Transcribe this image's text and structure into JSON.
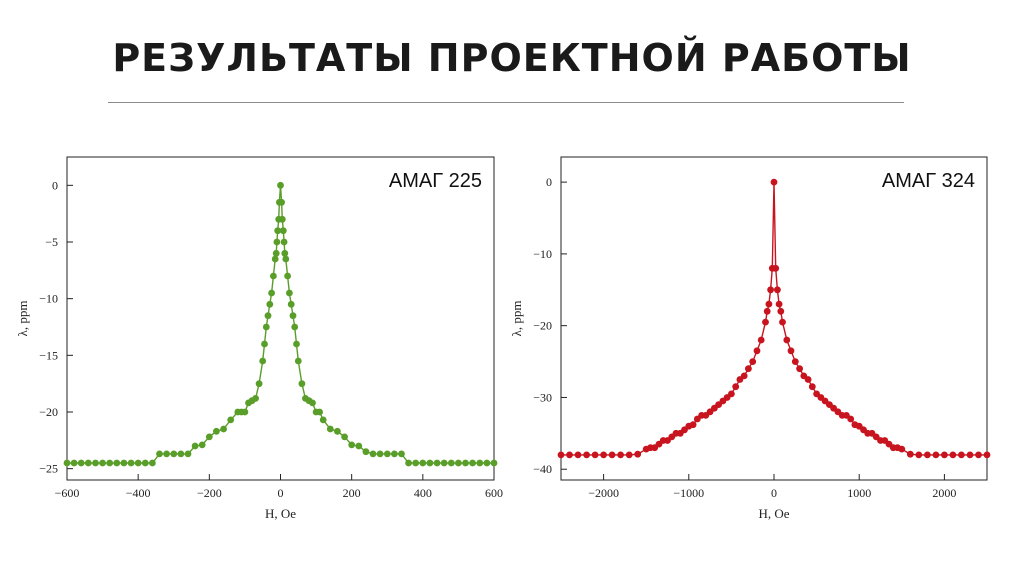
{
  "slide": {
    "title": "РЕЗУЛЬТАТЫ ПРОЕКТНОЙ РАБОТЫ"
  },
  "chart_data": [
    {
      "type": "line",
      "annotation": "АМАГ 225",
      "xlabel": "H, Oe",
      "ylabel": "λ, ppm",
      "xlim": [
        -600,
        600
      ],
      "ylim": [
        -26,
        2.5
      ],
      "xticks": [
        -600,
        -400,
        -200,
        0,
        200,
        400,
        600
      ],
      "yticks": [
        0,
        -5,
        -10,
        -15,
        -20,
        -25
      ],
      "grid": false,
      "marker": "circle",
      "color": "#5a9e2a",
      "series": [
        {
          "name": "",
          "x": [
            -600,
            -580,
            -560,
            -540,
            -520,
            -500,
            -480,
            -460,
            -440,
            -420,
            -400,
            -380,
            -360,
            -340,
            -320,
            -300,
            -280,
            -260,
            -240,
            -220,
            -200,
            -180,
            -160,
            -140,
            -120,
            -110,
            -100,
            -90,
            -80,
            -70,
            -60,
            -50,
            -45,
            -40,
            -35,
            -30,
            -25,
            -20,
            -15,
            -12,
            -10,
            -8,
            -5,
            -3,
            0,
            3,
            5,
            8,
            10,
            12,
            15,
            20,
            25,
            30,
            35,
            40,
            45,
            50,
            60,
            70,
            80,
            90,
            100,
            110,
            120,
            140,
            160,
            180,
            200,
            220,
            240,
            260,
            280,
            300,
            320,
            340,
            360,
            380,
            400,
            420,
            440,
            460,
            480,
            500,
            520,
            540,
            560,
            580,
            600
          ],
          "y": [
            -24.5,
            -24.5,
            -24.5,
            -24.5,
            -24.5,
            -24.5,
            -24.5,
            -24.5,
            -24.5,
            -24.5,
            -24.5,
            -24.5,
            -24.5,
            -23.7,
            -23.7,
            -23.7,
            -23.7,
            -23.7,
            -23.0,
            -22.9,
            -22.2,
            -21.7,
            -21.5,
            -20.7,
            -20.0,
            -20.0,
            -20.0,
            -19.2,
            -19.0,
            -18.8,
            -17.5,
            -15.5,
            -14.0,
            -12.5,
            -11.5,
            -10.5,
            -9.5,
            -8.0,
            -6.5,
            -6.0,
            -5.0,
            -4.0,
            -3.0,
            -1.5,
            0,
            -1.5,
            -3.0,
            -4.0,
            -5.0,
            -6.0,
            -6.5,
            -8.0,
            -9.5,
            -10.5,
            -11.5,
            -12.5,
            -14.0,
            -15.5,
            -17.5,
            -18.8,
            -19.0,
            -19.2,
            -20.0,
            -20.0,
            -20.7,
            -21.5,
            -21.7,
            -22.2,
            -22.9,
            -23.0,
            -23.5,
            -23.7,
            -23.7,
            -23.7,
            -23.7,
            -23.7,
            -24.5,
            -24.5,
            -24.5,
            -24.5,
            -24.5,
            -24.5,
            -24.5,
            -24.5,
            -24.5,
            -24.5,
            -24.5,
            -24.5,
            -24.5
          ]
        }
      ]
    },
    {
      "type": "line",
      "annotation": "АМАГ 324",
      "xlabel": "H, Oe",
      "ylabel": "λ, ppm",
      "xlim": [
        -2500,
        2500
      ],
      "ylim": [
        -41.5,
        3.5
      ],
      "xticks": [
        -2000,
        -1000,
        0,
        1000,
        2000
      ],
      "yticks": [
        0,
        -10,
        -20,
        -30,
        -40
      ],
      "grid": false,
      "marker": "circle",
      "color": "#c8141e",
      "series": [
        {
          "name": "",
          "x": [
            -2500,
            -2400,
            -2300,
            -2200,
            -2100,
            -2000,
            -1900,
            -1800,
            -1700,
            -1600,
            -1500,
            -1450,
            -1400,
            -1350,
            -1300,
            -1250,
            -1200,
            -1150,
            -1100,
            -1050,
            -1000,
            -950,
            -900,
            -850,
            -800,
            -750,
            -700,
            -650,
            -600,
            -550,
            -500,
            -450,
            -400,
            -350,
            -300,
            -250,
            -200,
            -150,
            -100,
            -80,
            -60,
            -40,
            -20,
            0,
            20,
            40,
            60,
            80,
            100,
            150,
            200,
            250,
            300,
            350,
            400,
            450,
            500,
            550,
            600,
            650,
            700,
            750,
            800,
            850,
            900,
            950,
            1000,
            1050,
            1100,
            1150,
            1200,
            1250,
            1300,
            1350,
            1400,
            1450,
            1500,
            1600,
            1700,
            1800,
            1900,
            2000,
            2100,
            2200,
            2300,
            2400,
            2500
          ],
          "y": [
            -38.0,
            -38.0,
            -38.0,
            -38.0,
            -38.0,
            -38.0,
            -38.0,
            -38.0,
            -38.0,
            -37.9,
            -37.2,
            -37.0,
            -37.0,
            -36.5,
            -36.0,
            -36.0,
            -35.5,
            -35.0,
            -35.0,
            -34.5,
            -34.0,
            -33.8,
            -33.0,
            -32.5,
            -32.5,
            -32.0,
            -31.5,
            -31.0,
            -30.5,
            -30.0,
            -29.5,
            -28.5,
            -27.5,
            -27.0,
            -26.0,
            -25.0,
            -23.5,
            -22.0,
            -19.5,
            -18.0,
            -17.0,
            -15.0,
            -12.0,
            0,
            -12.0,
            -15.0,
            -17.0,
            -18.0,
            -19.5,
            -22.0,
            -23.5,
            -25.0,
            -26.0,
            -27.0,
            -27.5,
            -28.5,
            -29.5,
            -30.0,
            -30.5,
            -31.0,
            -31.5,
            -32.0,
            -32.5,
            -32.5,
            -33.0,
            -33.8,
            -34.0,
            -34.5,
            -35.0,
            -35.0,
            -35.5,
            -36.0,
            -36.0,
            -36.5,
            -37.0,
            -37.0,
            -37.2,
            -37.9,
            -38.0,
            -38.0,
            -38.0,
            -38.0,
            -38.0,
            -38.0,
            -38.0,
            -38.0,
            -38.0
          ]
        }
      ]
    }
  ]
}
